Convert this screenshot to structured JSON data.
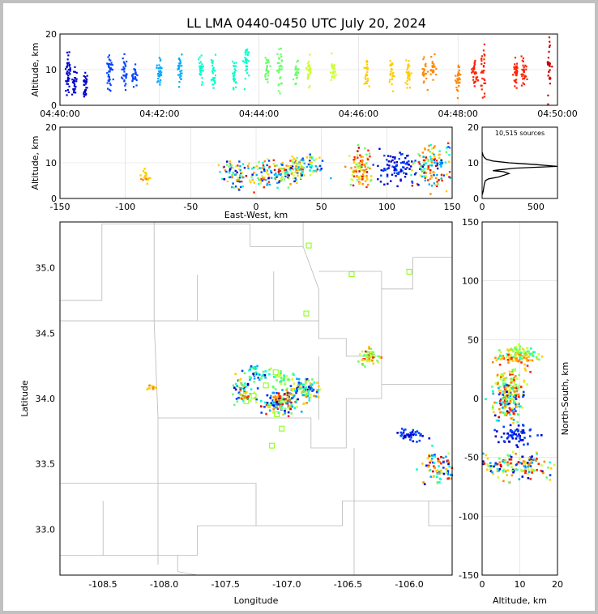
{
  "title": "LL LMA 0440-0450 UTC July 20, 2024",
  "colors": {
    "grid": "#d9d9d9",
    "border_lines": "#b8b8b8",
    "histogram": "#000000",
    "station": "#7fff00",
    "scale": [
      "#0000cc",
      "#0044ff",
      "#00aaff",
      "#00ffcc",
      "#66ff66",
      "#ccff33",
      "#ffcc00",
      "#ff8800",
      "#ff2200",
      "#cc0000"
    ]
  },
  "chart_data": [
    {
      "id": "time-height",
      "type": "scatter",
      "ylabel": "Altitude, km",
      "ylim": [
        0,
        20
      ],
      "yticks": [
        "0",
        "10",
        "20"
      ],
      "xlim": [
        0,
        600
      ],
      "xticks": [
        {
          "t": 0,
          "label": "04:40:00"
        },
        {
          "t": 120,
          "label": "04:42:00"
        },
        {
          "t": 240,
          "label": "04:44:00"
        },
        {
          "t": 360,
          "label": "04:46:00"
        },
        {
          "t": 480,
          "label": "04:48:00"
        },
        {
          "t": 600,
          "label": "04:50:00"
        }
      ],
      "clusters": [
        {
          "t": 10,
          "z": 9,
          "spread": 3,
          "n": 40
        },
        {
          "t": 17,
          "z": 7,
          "spread": 2,
          "n": 30
        },
        {
          "t": 30,
          "z": 6,
          "spread": 2,
          "n": 30
        },
        {
          "t": 60,
          "z": 9,
          "spread": 2.5,
          "n": 40
        },
        {
          "t": 78,
          "z": 9,
          "spread": 2,
          "n": 30
        },
        {
          "t": 90,
          "z": 8,
          "spread": 2,
          "n": 25
        },
        {
          "t": 120,
          "z": 9,
          "spread": 2,
          "n": 30
        },
        {
          "t": 145,
          "z": 10,
          "spread": 2,
          "n": 30
        },
        {
          "t": 170,
          "z": 10,
          "spread": 2,
          "n": 25
        },
        {
          "t": 185,
          "z": 9,
          "spread": 2,
          "n": 25
        },
        {
          "t": 210,
          "z": 9,
          "spread": 2,
          "n": 25
        },
        {
          "t": 225,
          "z": 11,
          "spread": 2.5,
          "n": 30
        },
        {
          "t": 250,
          "z": 10,
          "spread": 2,
          "n": 25
        },
        {
          "t": 265,
          "z": 10,
          "spread": 3,
          "n": 30
        },
        {
          "t": 285,
          "z": 9,
          "spread": 2,
          "n": 25
        },
        {
          "t": 300,
          "z": 9,
          "spread": 2,
          "n": 30
        },
        {
          "t": 330,
          "z": 10,
          "spread": 2,
          "n": 25
        },
        {
          "t": 370,
          "z": 9,
          "spread": 2,
          "n": 25
        },
        {
          "t": 400,
          "z": 9,
          "spread": 2,
          "n": 25
        },
        {
          "t": 420,
          "z": 9,
          "spread": 2,
          "n": 30
        },
        {
          "t": 440,
          "z": 9,
          "spread": 2,
          "n": 25
        },
        {
          "t": 450,
          "z": 10,
          "spread": 2,
          "n": 25
        },
        {
          "t": 480,
          "z": 8,
          "spread": 2,
          "n": 30
        },
        {
          "t": 500,
          "z": 9,
          "spread": 2,
          "n": 30
        },
        {
          "t": 510,
          "z": 10,
          "spread": 3,
          "n": 30
        },
        {
          "t": 550,
          "z": 9,
          "spread": 2,
          "n": 30
        },
        {
          "t": 560,
          "z": 9,
          "spread": 2,
          "n": 30
        },
        {
          "t": 590,
          "z": 11,
          "spread": 4,
          "n": 30
        }
      ]
    },
    {
      "id": "ew-altitude",
      "type": "scatter",
      "xlabel": "East-West, km",
      "ylabel": "Altitude, km",
      "xlim": [
        -150,
        150
      ],
      "ylim": [
        0,
        20
      ],
      "xticks": [
        "-150",
        "-100",
        "-50",
        "0",
        "50",
        "100",
        "150"
      ],
      "yticks": [
        "0",
        "10",
        "20"
      ],
      "clusters": [
        {
          "x": -85,
          "z": 6,
          "sx": 2,
          "sz": 1,
          "n": 20,
          "tmin": 0.6,
          "tmax": 0.8
        },
        {
          "x": -15,
          "z": 7,
          "sx": 6,
          "sz": 2,
          "n": 80,
          "tmin": 0,
          "tmax": 1
        },
        {
          "x": 15,
          "z": 7,
          "sx": 10,
          "sz": 2,
          "n": 120,
          "tmin": 0,
          "tmax": 1
        },
        {
          "x": 35,
          "z": 9,
          "sx": 8,
          "sz": 1.5,
          "n": 90,
          "tmin": 0,
          "tmax": 0.8
        },
        {
          "x": 80,
          "z": 8,
          "sx": 4,
          "sz": 2.5,
          "n": 100,
          "tmin": 0.4,
          "tmax": 1
        },
        {
          "x": 108,
          "z": 9,
          "sx": 7,
          "sz": 2,
          "n": 90,
          "tmin": 0,
          "tmax": 0.1
        },
        {
          "x": 135,
          "z": 9,
          "sx": 7,
          "sz": 3,
          "n": 140,
          "tmin": 0,
          "tmax": 1
        }
      ]
    },
    {
      "id": "altitude-histogram",
      "type": "line",
      "annotation": "10,515 sources",
      "xlim": [
        0,
        700
      ],
      "ylim": [
        0,
        20
      ],
      "xticks": [
        "0",
        "500"
      ],
      "yticks": [
        "0",
        "10",
        "20"
      ],
      "x": [
        0,
        10,
        15,
        20,
        30,
        60,
        150,
        250,
        200,
        100,
        150,
        300,
        700,
        500,
        250,
        100,
        40,
        20,
        10,
        5,
        0
      ],
      "z": [
        1,
        2,
        3,
        4,
        5,
        5.5,
        6,
        7,
        7.5,
        7.8,
        8,
        8.5,
        9,
        9.5,
        10,
        10.5,
        11,
        11.5,
        12,
        12.5,
        13
      ]
    },
    {
      "id": "map",
      "type": "scatter",
      "xlabel": "Longitude",
      "ylabel": "Latitude",
      "xlim": [
        -108.85,
        -105.65
      ],
      "ylim": [
        32.65,
        35.35
      ],
      "xticks": [
        "-108.5",
        "-108.0",
        "-107.5",
        "-107.0",
        "-106.5",
        "-106.0"
      ],
      "yticks": [
        "33.0",
        "33.5",
        "34.0",
        "34.5",
        "35.0"
      ],
      "clusters": [
        {
          "lon": -108.1,
          "lat": 34.08,
          "slon": 0.02,
          "slat": 0.01,
          "n": 12,
          "tmin": 0.6,
          "tmax": 0.8
        },
        {
          "lon": -107.35,
          "lat": 34.05,
          "slon": 0.04,
          "slat": 0.05,
          "n": 60,
          "tmin": 0,
          "tmax": 1
        },
        {
          "lon": -107.25,
          "lat": 34.2,
          "slon": 0.05,
          "slat": 0.03,
          "n": 40,
          "tmin": 0,
          "tmax": 0.5
        },
        {
          "lon": -107.05,
          "lat": 33.97,
          "slon": 0.08,
          "slat": 0.04,
          "n": 150,
          "tmin": 0,
          "tmax": 1
        },
        {
          "lon": -106.85,
          "lat": 34.08,
          "slon": 0.06,
          "slat": 0.04,
          "n": 90,
          "tmin": 0,
          "tmax": 0.8
        },
        {
          "lon": -107.05,
          "lat": 34.15,
          "slon": 0.05,
          "slat": 0.03,
          "n": 40,
          "tmin": 0.3,
          "tmax": 0.6
        },
        {
          "lon": -106.32,
          "lat": 34.32,
          "slon": 0.04,
          "slat": 0.03,
          "n": 60,
          "tmin": 0.4,
          "tmax": 1
        },
        {
          "lon": -106.0,
          "lat": 33.72,
          "slon": 0.06,
          "slat": 0.02,
          "n": 40,
          "tmin": 0,
          "tmax": 0.1
        },
        {
          "lon": -105.75,
          "lat": 33.47,
          "slon": 0.07,
          "slat": 0.07,
          "n": 80,
          "tmin": 0,
          "tmax": 1
        }
      ],
      "stations": [
        {
          "lon": -106.82,
          "lat": 35.17
        },
        {
          "lon": -106.47,
          "lat": 34.95
        },
        {
          "lon": -106.0,
          "lat": 34.97
        },
        {
          "lon": -106.84,
          "lat": 34.65
        },
        {
          "lon": -107.09,
          "lat": 34.2
        },
        {
          "lon": -107.17,
          "lat": 34.1
        },
        {
          "lon": -107.27,
          "lat": 34.02
        },
        {
          "lon": -107.33,
          "lat": 33.98
        },
        {
          "lon": -107.08,
          "lat": 33.88
        },
        {
          "lon": -107.04,
          "lat": 33.77
        },
        {
          "lon": -107.12,
          "lat": 33.64
        }
      ]
    },
    {
      "id": "altitude-ns",
      "type": "scatter",
      "xlabel": "Altitude, km",
      "ylabel": "North-South, km",
      "xlim": [
        0,
        20
      ],
      "ylim": [
        -150,
        150
      ],
      "xticks": [
        "0",
        "10",
        "20"
      ],
      "yticks": [
        "-150",
        "-100",
        "-50",
        "0",
        "50",
        "100",
        "150"
      ],
      "clusters": [
        {
          "z": 10,
          "y": 38,
          "sz": 3,
          "sy": 3,
          "n": 80,
          "tmin": 0.3,
          "tmax": 0.7
        },
        {
          "z": 9,
          "y": 33,
          "sz": 3,
          "sy": 2,
          "n": 40,
          "tmin": 0.6,
          "tmax": 0.9
        },
        {
          "z": 8,
          "y": 15,
          "sz": 2,
          "sy": 6,
          "n": 60,
          "tmin": 0.4,
          "tmax": 0.9
        },
        {
          "z": 7,
          "y": -3,
          "sz": 2,
          "sy": 8,
          "n": 150,
          "tmin": 0,
          "tmax": 1
        },
        {
          "z": 9,
          "y": -30,
          "sz": 3,
          "sy": 5,
          "n": 60,
          "tmin": 0,
          "tmax": 0.1
        },
        {
          "z": 10,
          "y": -57,
          "sz": 5,
          "sy": 5,
          "n": 140,
          "tmin": 0,
          "tmax": 1
        }
      ]
    }
  ]
}
